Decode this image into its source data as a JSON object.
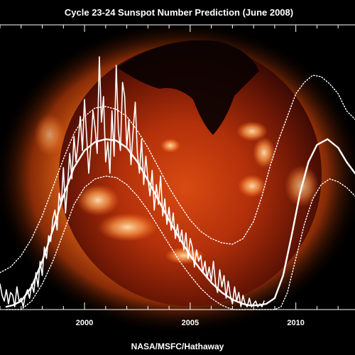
{
  "chart_data": {
    "type": "line",
    "title": "Cycle 23-24 Sunspot Number Prediction (June 2008)",
    "credit": "NASA/MSFC/Hathaway",
    "xlabel": "",
    "ylabel": "",
    "xlim": [
      1996.0,
      2012.8
    ],
    "ylim": [
      0,
      200
    ],
    "x_ticks": [
      2000,
      2005,
      2010
    ],
    "grid": false,
    "background": "X-ray image of the Sun (Yohkoh)",
    "colors": {
      "background": "#000000",
      "corona": "#ff7a1c",
      "disk": "#3a0a04",
      "lines": "#ffffff"
    },
    "series": [
      {
        "style": "monthly-jagged",
        "x": [
          1996.0,
          1996.1,
          1996.2,
          1996.3,
          1996.4,
          1996.5,
          1996.6,
          1996.7,
          1996.8,
          1996.9,
          1997.0,
          1997.1,
          1997.2,
          1997.3,
          1997.4,
          1997.5,
          1997.6,
          1997.7,
          1997.8,
          1997.9,
          1998.0,
          1998.1,
          1998.2,
          1998.3,
          1998.4,
          1998.5,
          1998.6,
          1998.7,
          1998.8,
          1998.9,
          1999.0,
          1999.1,
          1999.2,
          1999.3,
          1999.4,
          1999.5,
          1999.6,
          1999.7,
          1999.8,
          1999.9,
          2000.0,
          2000.1,
          2000.2,
          2000.3,
          2000.4,
          2000.5,
          2000.6,
          2000.7,
          2000.8,
          2000.9,
          2001.0,
          2001.1,
          2001.2,
          2001.3,
          2001.4,
          2001.5,
          2001.6,
          2001.7,
          2001.8,
          2001.9,
          2002.0,
          2002.1,
          2002.2,
          2002.3,
          2002.4,
          2002.5,
          2002.6,
          2002.7,
          2002.8,
          2002.9,
          2003.0,
          2003.1,
          2003.2,
          2003.3,
          2003.4,
          2003.5,
          2003.6,
          2003.7,
          2003.8,
          2003.9,
          2004.0,
          2004.1,
          2004.2,
          2004.3,
          2004.4,
          2004.5,
          2004.6,
          2004.7,
          2004.8,
          2004.9,
          2005.0,
          2005.1,
          2005.2,
          2005.3,
          2005.4,
          2005.5,
          2005.6,
          2005.7,
          2005.8,
          2005.9,
          2006.0,
          2006.1,
          2006.2,
          2006.3,
          2006.4,
          2006.5,
          2006.6,
          2006.7,
          2006.8,
          2006.9,
          2007.0,
          2007.1,
          2007.2,
          2007.3,
          2007.4,
          2007.5,
          2007.6,
          2007.7,
          2007.8,
          2007.9,
          2008.0,
          2008.1,
          2008.2,
          2008.3,
          2008.4,
          2008.5
        ],
        "y": [
          18,
          10,
          6,
          14,
          4,
          12,
          10,
          2,
          16,
          6,
          8,
          2,
          10,
          14,
          8,
          18,
          12,
          26,
          16,
          34,
          24,
          44,
          36,
          52,
          48,
          64,
          70,
          56,
          82,
          74,
          100,
          68,
          88,
          110,
          92,
          122,
          104,
          118,
          136,
          112,
          148,
          122,
          96,
          116,
          140,
          128,
          110,
          178,
          132,
          150,
          104,
          118,
          96,
          140,
          108,
          172,
          126,
          112,
          160,
          150,
          114,
          134,
          102,
          126,
          146,
          110,
          96,
          120,
          88,
          108,
          92,
          80,
          98,
          70,
          88,
          74,
          94,
          66,
          78,
          60,
          72,
          56,
          68,
          50,
          60,
          48,
          56,
          42,
          54,
          36,
          50,
          44,
          30,
          42,
          34,
          38,
          26,
          34,
          22,
          30,
          20,
          34,
          18,
          12,
          28,
          16,
          24,
          8,
          20,
          10,
          4,
          16,
          6,
          12,
          2,
          10,
          4,
          2,
          8,
          2,
          4,
          6,
          2,
          4,
          2,
          6
        ]
      },
      {
        "style": "smoothed-thick",
        "x": [
          1996.3,
          1996.6,
          1997.0,
          1997.5,
          1998.0,
          1998.5,
          1999.0,
          1999.5,
          2000.0,
          2000.5,
          2001.0,
          2001.5,
          2002.0,
          2002.5,
          2003.0,
          2003.5,
          2004.0,
          2004.5,
          2005.0,
          2005.5,
          2006.0,
          2006.5,
          2007.0,
          2007.5,
          2007.8,
          2008.2,
          2008.6,
          2009.0,
          2009.4,
          2009.8,
          2010.2,
          2010.6,
          2011.0,
          2011.5,
          2012.0,
          2012.4,
          2012.8
        ],
        "y": [
          2,
          3,
          6,
          16,
          34,
          56,
          80,
          100,
          112,
          118,
          120,
          119,
          114,
          104,
          91,
          77,
          63,
          50,
          38,
          28,
          19,
          12,
          7,
          4,
          3,
          3,
          4,
          8,
          24,
          52,
          82,
          104,
          116,
          120,
          114,
          104,
          96
        ]
      },
      {
        "style": "upper-dotted",
        "x": [
          1996.0,
          1996.5,
          1997.0,
          1997.5,
          1998.0,
          1998.5,
          1999.0,
          1999.5,
          2000.0,
          2000.5,
          2001.0,
          2001.5,
          2002.0,
          2002.5,
          2003.0,
          2003.5,
          2004.0,
          2004.5,
          2005.0,
          2005.5,
          2006.0,
          2006.5,
          2007.0,
          2007.5,
          2008.0,
          2008.4,
          2008.8,
          2009.2,
          2009.6,
          2010.0,
          2010.4,
          2010.8,
          2011.2,
          2011.6,
          2012.0,
          2012.4,
          2012.8
        ],
        "y": [
          26,
          30,
          38,
          50,
          66,
          86,
          106,
          124,
          136,
          142,
          143,
          141,
          136,
          126,
          114,
          100,
          86,
          74,
          63,
          55,
          50,
          47,
          46,
          50,
          62,
          80,
          102,
          120,
          136,
          152,
          160,
          165,
          164,
          159,
          152,
          140,
          134
        ]
      },
      {
        "style": "lower-dotted",
        "x": [
          1996.3,
          1997.0,
          1997.5,
          1998.0,
          1998.5,
          1999.0,
          1999.5,
          2000.0,
          2000.5,
          2001.0,
          2001.5,
          2002.0,
          2002.5,
          2003.0,
          2003.5,
          2004.0,
          2004.5,
          2005.0,
          2005.5,
          2006.0,
          2006.5,
          2007.0,
          2007.5,
          2008.0,
          2008.5,
          2009.0,
          2009.3,
          2009.6,
          2010.0,
          2010.4,
          2010.8,
          2011.2,
          2011.6,
          2012.0,
          2012.4,
          2012.8
        ],
        "y": [
          0,
          0,
          6,
          18,
          34,
          54,
          74,
          86,
          92,
          94,
          93,
          88,
          80,
          70,
          58,
          46,
          34,
          24,
          15,
          8,
          3,
          0,
          0,
          0,
          0,
          0,
          2,
          12,
          36,
          60,
          78,
          88,
          92,
          90,
          86,
          80
        ]
      }
    ]
  }
}
